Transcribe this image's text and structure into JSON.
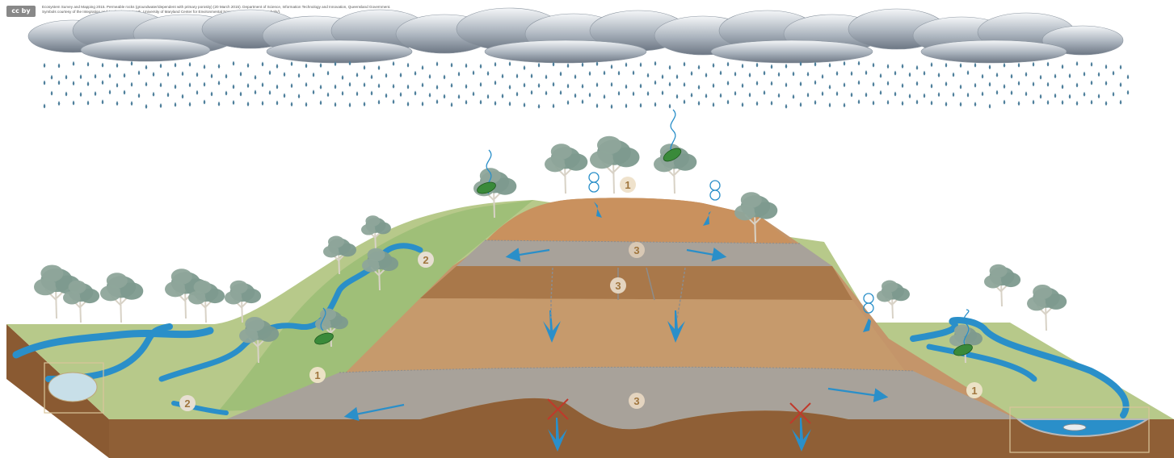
{
  "credits": {
    "badge": "cc by",
    "line1": "Ecosystem Survey and Mapping 2015. Permeable rocks (groundwater/dependent with primary porosity) (20 March 2015). Department of Science, Information Technology and Innovation, Queensland Government.",
    "line2": "Symbols courtesy of the Integration and Application Network, University of Maryland Center for Environmental Science (ian.umces.edu/symbols/)."
  },
  "labels": {
    "one": "1",
    "two": "2",
    "three": "3"
  },
  "colors": {
    "water": "#2a8fc9",
    "rain": "#4e7f9b",
    "soil_light": "#c4956a",
    "soil_dark": "#9a6a40",
    "rock_grey": "#a8a29a",
    "grass": "#b7c98a",
    "cross": "#c0392b"
  }
}
